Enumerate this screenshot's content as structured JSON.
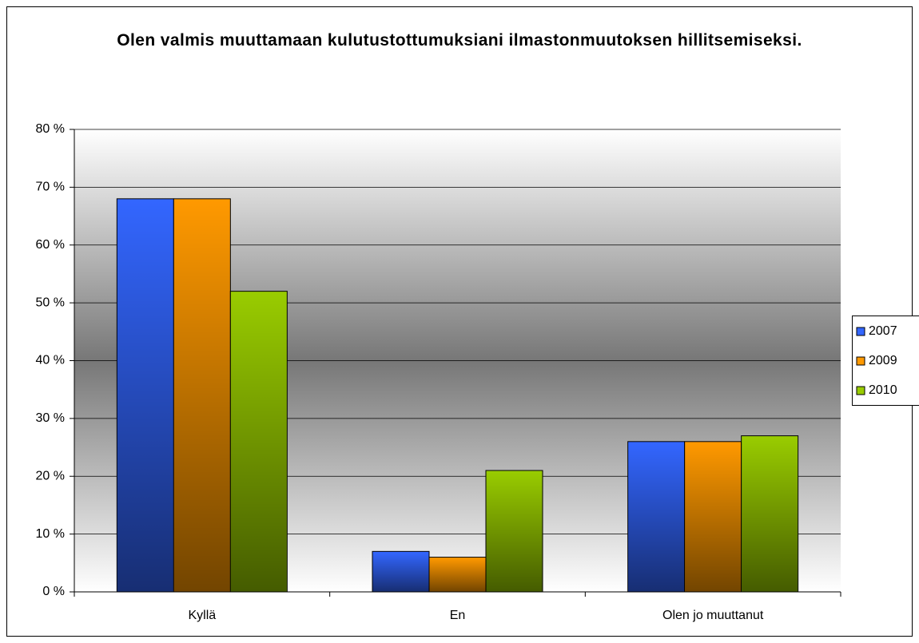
{
  "chart_data": {
    "type": "bar",
    "title": "Olen valmis muuttamaan kulutustottumuksiani ilmastonmuutoksen hillitsemiseksi.",
    "categories": [
      "Kyllä",
      "En",
      "Olen jo muuttanut"
    ],
    "series": [
      {
        "name": "2007",
        "color": "#3366ff",
        "values": [
          68,
          7,
          26
        ]
      },
      {
        "name": "2009",
        "color": "#ff9900",
        "values": [
          68,
          6,
          26
        ]
      },
      {
        "name": "2010",
        "color": "#99cc00",
        "values": [
          52,
          21,
          27
        ]
      }
    ],
    "ylim": [
      0,
      80
    ],
    "yticks": [
      {
        "value": 0,
        "label": "0 %"
      },
      {
        "value": 10,
        "label": "10 %"
      },
      {
        "value": 20,
        "label": "20 %"
      },
      {
        "value": 30,
        "label": "30 %"
      },
      {
        "value": 40,
        "label": "40 %"
      },
      {
        "value": 50,
        "label": "50 %"
      },
      {
        "value": 60,
        "label": "60 %"
      },
      {
        "value": 70,
        "label": "70 %"
      },
      {
        "value": 80,
        "label": "80 %"
      }
    ],
    "grid": true,
    "legend": "right"
  }
}
